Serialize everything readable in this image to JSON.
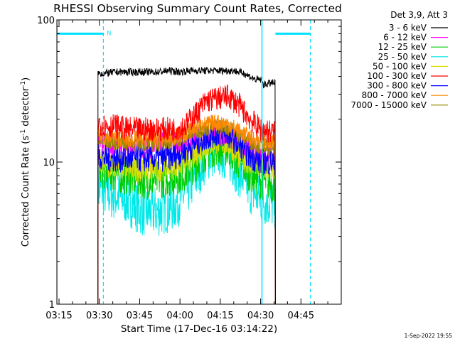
{
  "chart_data": {
    "type": "line",
    "title": "RHESSI Observing Summary Count Rates, Corrected",
    "xlabel": "Start Time (17-Dec-16 03:14:22)",
    "ylabel": "Corrected Count Rate (s⁻¹ detector⁻¹)",
    "ylabel_main": "Corrected Count Rate (s",
    "ylabel_sup1": "-1",
    "ylabel_mid": " detector",
    "ylabel_sup2": "-1",
    "ylabel_end": ")",
    "x_tick_labels": [
      "03:15",
      "03:30",
      "03:45",
      "04:00",
      "04:15",
      "04:30",
      "04:45"
    ],
    "x_tick_minutes": [
      195,
      210,
      225,
      240,
      255,
      270,
      285
    ],
    "xlim_minutes": [
      194.2,
      300
    ],
    "y_scale": "log",
    "ylim": [
      1,
      100
    ],
    "y_tick_labels": [
      "1",
      "10",
      "100"
    ],
    "y_tick_values": [
      1,
      10,
      100
    ],
    "legend_title": "Det 3,9, Att 3",
    "legend_placement": "top-right outside",
    "data_start_minute": 209.5,
    "data_end_minute": 275.5,
    "gap_minute": 270.5,
    "series": [
      {
        "name": "3 - 6 keV",
        "color": "#000000",
        "points": [
          [
            209.5,
            42
          ],
          [
            212,
            42
          ],
          [
            216,
            43
          ],
          [
            220,
            43
          ],
          [
            224,
            43
          ],
          [
            228,
            43
          ],
          [
            232,
            43
          ],
          [
            236,
            44
          ],
          [
            240,
            43
          ],
          [
            244,
            44
          ],
          [
            248,
            44
          ],
          [
            252,
            44
          ],
          [
            256,
            44
          ],
          [
            260,
            44
          ],
          [
            264,
            42
          ],
          [
            268,
            38
          ],
          [
            270,
            38
          ],
          [
            271,
            35
          ],
          [
            274,
            36
          ],
          [
            275.5,
            36
          ]
        ]
      },
      {
        "name": "6 - 12 keV",
        "color": "#ff00ff",
        "points": [
          [
            209.5,
            13.5
          ],
          [
            214,
            13
          ],
          [
            220,
            13
          ],
          [
            226,
            13
          ],
          [
            232,
            13
          ],
          [
            238,
            13.5
          ],
          [
            244,
            14
          ],
          [
            248,
            15
          ],
          [
            252,
            16
          ],
          [
            256,
            16
          ],
          [
            260,
            15
          ],
          [
            264,
            13
          ],
          [
            268,
            12
          ],
          [
            270,
            11.5
          ],
          [
            275.5,
            11
          ]
        ]
      },
      {
        "name": "12 - 25 keV",
        "color": "#00cc00",
        "points": [
          [
            209.5,
            9
          ],
          [
            214,
            8.5
          ],
          [
            220,
            8
          ],
          [
            226,
            7.5
          ],
          [
            232,
            7.5
          ],
          [
            238,
            8
          ],
          [
            242,
            8.5
          ],
          [
            246,
            10
          ],
          [
            250,
            12
          ],
          [
            254,
            13
          ],
          [
            258,
            12.5
          ],
          [
            262,
            10
          ],
          [
            266,
            8.5
          ],
          [
            270,
            7.5
          ],
          [
            275.5,
            7
          ]
        ]
      },
      {
        "name": "25 - 50 keV",
        "color": "#00e8e8",
        "points": [
          [
            209.5,
            6.5
          ],
          [
            214,
            6
          ],
          [
            220,
            5.5
          ],
          [
            226,
            4.5
          ],
          [
            232,
            4.5
          ],
          [
            238,
            5
          ],
          [
            242,
            6
          ],
          [
            246,
            8
          ],
          [
            250,
            11
          ],
          [
            254,
            12
          ],
          [
            258,
            11
          ],
          [
            262,
            8.5
          ],
          [
            266,
            6.5
          ],
          [
            270,
            5.5
          ],
          [
            275.5,
            5
          ]
        ]
      },
      {
        "name": "50 - 100 keV",
        "color": "#dddd00",
        "points": [
          [
            209.5,
            10
          ],
          [
            214,
            9.5
          ],
          [
            220,
            9
          ],
          [
            226,
            9
          ],
          [
            232,
            9
          ],
          [
            238,
            9.5
          ],
          [
            242,
            10
          ],
          [
            246,
            11.5
          ],
          [
            250,
            13
          ],
          [
            254,
            14
          ],
          [
            258,
            13.5
          ],
          [
            262,
            11
          ],
          [
            266,
            10
          ],
          [
            270,
            9
          ],
          [
            275.5,
            9
          ]
        ]
      },
      {
        "name": "100 - 300 keV",
        "color": "#ff0000",
        "points": [
          [
            209.5,
            19
          ],
          [
            212,
            18
          ],
          [
            216,
            18
          ],
          [
            220,
            17
          ],
          [
            226,
            17
          ],
          [
            232,
            17
          ],
          [
            238,
            17
          ],
          [
            242,
            18
          ],
          [
            246,
            22
          ],
          [
            250,
            27
          ],
          [
            254,
            28
          ],
          [
            258,
            29
          ],
          [
            262,
            25
          ],
          [
            266,
            20
          ],
          [
            270,
            17
          ],
          [
            275.5,
            16
          ]
        ]
      },
      {
        "name": "300 - 800 keV",
        "color": "#0000ff",
        "points": [
          [
            209.5,
            11
          ],
          [
            214,
            10.5
          ],
          [
            220,
            10.5
          ],
          [
            226,
            10.5
          ],
          [
            232,
            10.5
          ],
          [
            238,
            11
          ],
          [
            242,
            12
          ],
          [
            246,
            13.5
          ],
          [
            250,
            15
          ],
          [
            254,
            16
          ],
          [
            258,
            15.5
          ],
          [
            262,
            13
          ],
          [
            266,
            11
          ],
          [
            270,
            10
          ],
          [
            275.5,
            10
          ]
        ]
      },
      {
        "name": "800 - 7000 keV",
        "color": "#ff8800",
        "points": [
          [
            209.5,
            15
          ],
          [
            214,
            15
          ],
          [
            220,
            14.5
          ],
          [
            226,
            14.5
          ],
          [
            232,
            14.5
          ],
          [
            238,
            15
          ],
          [
            242,
            16
          ],
          [
            246,
            17.5
          ],
          [
            250,
            18.5
          ],
          [
            254,
            19
          ],
          [
            258,
            18.5
          ],
          [
            262,
            16.5
          ],
          [
            266,
            15
          ],
          [
            270,
            14
          ],
          [
            275.5,
            13.5
          ]
        ]
      },
      {
        "name": "7000 - 15000 keV",
        "color": "#998800",
        "points": [
          [
            209.5,
            14
          ],
          [
            214,
            14
          ],
          [
            220,
            13.5
          ],
          [
            226,
            13.5
          ],
          [
            232,
            13.5
          ],
          [
            238,
            14
          ],
          [
            242,
            15
          ],
          [
            246,
            16.5
          ],
          [
            250,
            17.5
          ],
          [
            254,
            18
          ],
          [
            258,
            17.5
          ],
          [
            262,
            15.5
          ],
          [
            266,
            14
          ],
          [
            270,
            13
          ],
          [
            275.5,
            12.5
          ]
        ]
      }
    ],
    "flag_bars": [
      {
        "start_minute": 194.2,
        "end_minute": 211.5,
        "y": 80,
        "label": "N"
      },
      {
        "start_minute": 275.5,
        "end_minute": 288.5,
        "y": 80
      }
    ],
    "flag_color": "#00e0ff",
    "solid_markers_minutes": [
      194.2,
      270.5
    ],
    "dashed_markers_minutes": [
      211.5,
      288.5
    ]
  },
  "footer": {
    "timestamp": "1-Sep-2022 19:55"
  }
}
